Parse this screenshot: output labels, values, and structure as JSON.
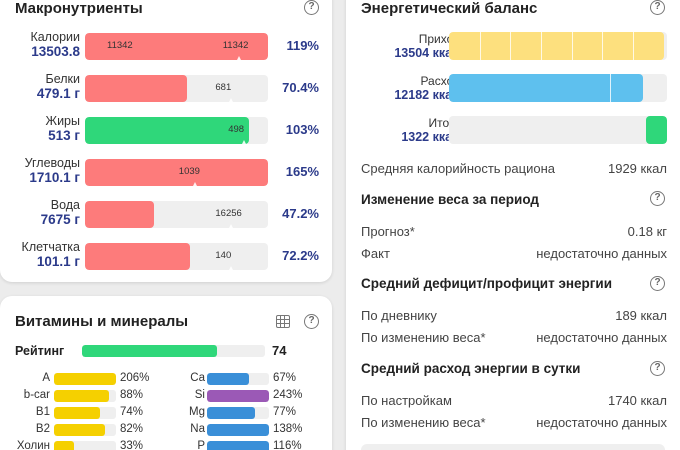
{
  "macros": {
    "title": "Макронутриенты",
    "help": "?",
    "rows": [
      {
        "name": "Калории",
        "value": "13503.8",
        "target": "11342",
        "extra": "11342",
        "fraction": 1.0,
        "target_fraction": 0.84,
        "pct": "119%",
        "color": "#fd7b7b"
      },
      {
        "name": "Белки",
        "value": "479.1 г",
        "target": "681",
        "fraction": 0.56,
        "target_fraction": 0.8,
        "pct": "70.4%",
        "color": "#fd7b7b"
      },
      {
        "name": "Жиры",
        "value": "513 г",
        "target": "498",
        "fraction": 0.895,
        "target_fraction": 0.87,
        "pct": "103%",
        "color": "#2fd77a"
      },
      {
        "name": "Углеводы",
        "value": "1710.1 г",
        "target": "1039",
        "fraction": 1.0,
        "target_fraction": 0.6,
        "pct": "165%",
        "color": "#fd7b7b"
      },
      {
        "name": "Вода",
        "value": "7675 г",
        "target": "16256",
        "fraction": 0.375,
        "target_fraction": 0.8,
        "pct": "47.2%",
        "color": "#fd7b7b"
      },
      {
        "name": "Клетчатка",
        "value": "101.1 г",
        "target": "140",
        "fraction": 0.575,
        "target_fraction": 0.8,
        "pct": "72.2%",
        "color": "#fd7b7b"
      }
    ]
  },
  "vitamins": {
    "title": "Витамины и минералы",
    "help": "?",
    "rating_label": "Рейтинг",
    "rating_value": "74",
    "rating_fraction": 0.74,
    "rating_color": "#2fd77a",
    "left": [
      {
        "name": "A",
        "pct": "206%",
        "fraction": 1.0,
        "color": "#f5d000"
      },
      {
        "name": "b-car",
        "pct": "88%",
        "fraction": 0.88,
        "color": "#f5d000"
      },
      {
        "name": "B1",
        "pct": "74%",
        "fraction": 0.74,
        "color": "#f5d000"
      },
      {
        "name": "B2",
        "pct": "82%",
        "fraction": 0.82,
        "color": "#f5d000"
      },
      {
        "name": "Холин",
        "pct": "33%",
        "fraction": 0.33,
        "color": "#f5d000"
      }
    ],
    "right": [
      {
        "name": "Ca",
        "pct": "67%",
        "fraction": 0.67,
        "color": "#3a8fd8"
      },
      {
        "name": "Si",
        "pct": "243%",
        "fraction": 1.0,
        "color": "#9b59b6"
      },
      {
        "name": "Mg",
        "pct": "77%",
        "fraction": 0.77,
        "color": "#3a8fd8"
      },
      {
        "name": "Na",
        "pct": "138%",
        "fraction": 1.0,
        "color": "#3a8fd8"
      },
      {
        "name": "P",
        "pct": "116%",
        "fraction": 1.0,
        "color": "#3a8fd8"
      }
    ]
  },
  "energy": {
    "title": "Энергетический баланс",
    "help": "?",
    "rows": [
      {
        "name": "Приход",
        "value": "13504 ккал",
        "fraction": 0.985,
        "color": "#fde07e",
        "segments": 7
      },
      {
        "name": "Расход",
        "value": "12182 ккал",
        "fraction": 0.89,
        "color": "#5ec0ee",
        "segments": 1
      },
      {
        "name": "Итого",
        "value": "1322 ккал",
        "fraction": 0.098,
        "color": "#2fd77a",
        "align": "right"
      }
    ],
    "avg_label": "Средняя калорийность рациона",
    "avg_value": "1929 ккал",
    "weight": {
      "title": "Изменение веса за период",
      "forecast_label": "Прогноз*",
      "forecast_value": "0.18 кг",
      "fact_label": "Факт",
      "fact_value": "недостаточно данных"
    },
    "deficit": {
      "title": "Средний дефицит/профицит энергии",
      "diary_label": "По дневнику",
      "diary_value": "189 ккал",
      "weight_label": "По изменению веса*",
      "weight_value": "недостаточно данных"
    },
    "daily": {
      "title": "Средний расход энергии в сутки",
      "settings_label": "По настройкам",
      "settings_value": "1740 ккал",
      "weight_label": "По изменению веса*",
      "weight_value": "недостаточно данных"
    }
  }
}
